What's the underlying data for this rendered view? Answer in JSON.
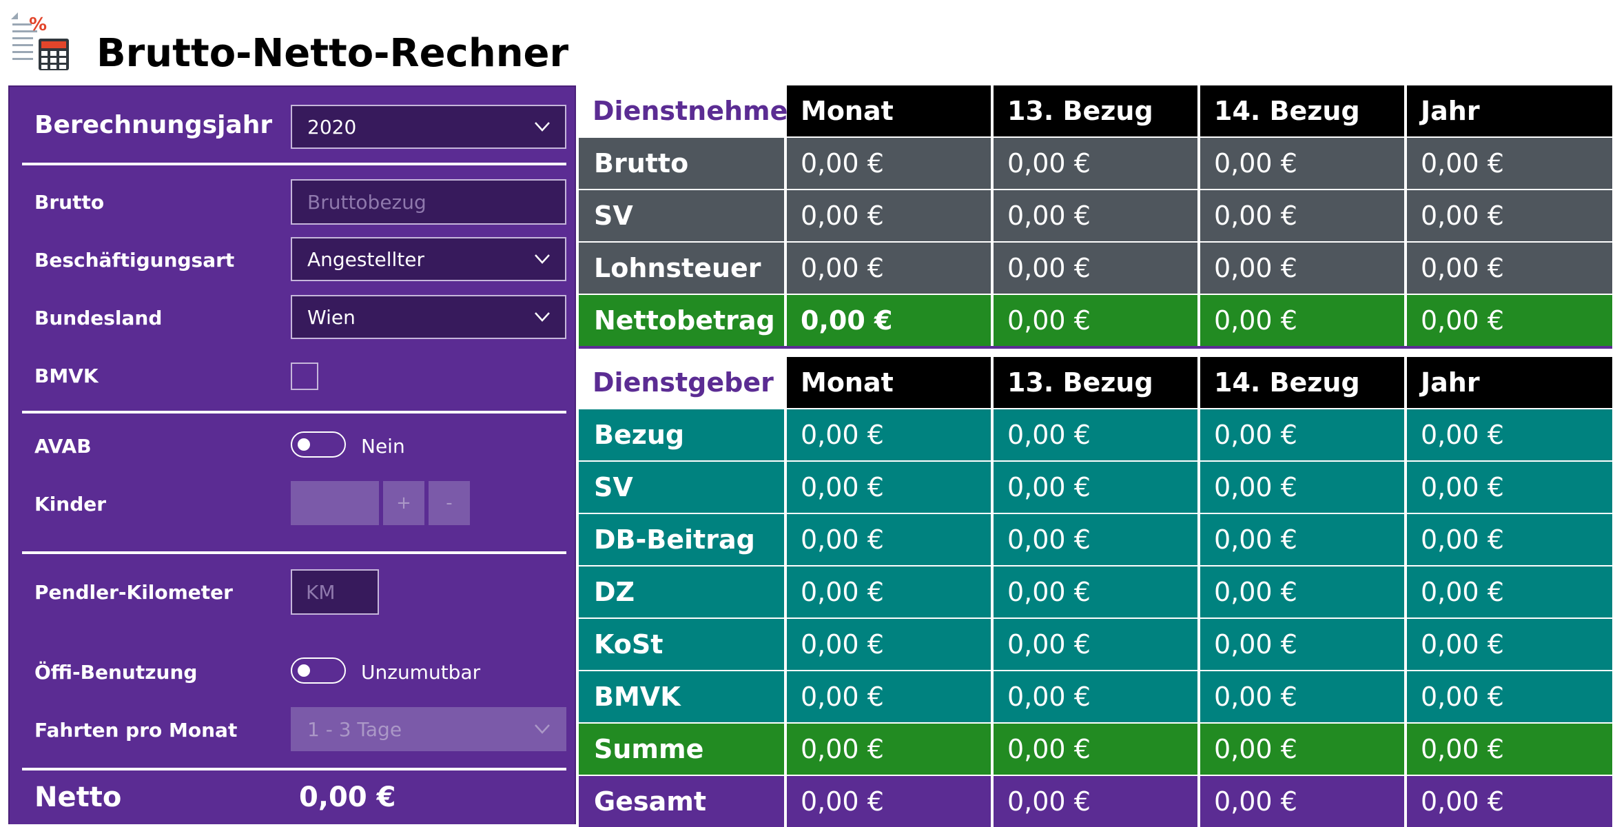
{
  "app": {
    "title": "Brutto-Netto-Rechner",
    "icon": "calculator-percent-icon"
  },
  "form": {
    "year": {
      "label": "Berechnungsjahr",
      "value": "2020"
    },
    "brutto": {
      "label": "Brutto",
      "placeholder": "Bruttobezug"
    },
    "employment": {
      "label": "Beschäftigungsart",
      "value": "Angestellter"
    },
    "state": {
      "label": "Bundesland",
      "value": "Wien"
    },
    "bmvk": {
      "label": "BMVK",
      "checked": false
    },
    "avab": {
      "label": "AVAB",
      "toggle_text": "Nein",
      "on": false
    },
    "kinder": {
      "label": "Kinder",
      "plus": "+",
      "minus": "-"
    },
    "pendler": {
      "label": "Pendler-Kilometer",
      "placeholder": "KM"
    },
    "oeffi": {
      "label": "Öffi-Benutzung",
      "toggle_text": "Unzumutbar",
      "on": false
    },
    "fahrten": {
      "label": "Fahrten pro Monat",
      "value": "1 - 3 Tage"
    },
    "netto": {
      "label": "Netto",
      "value": "0,00 €"
    }
  },
  "employee": {
    "title": "Dienstnehmer",
    "columns": [
      "Monat",
      "13. Bezug",
      "14. Bezug",
      "Jahr"
    ],
    "rows": [
      {
        "label": "Brutto",
        "values": [
          "0,00 €",
          "0,00 €",
          "0,00 €",
          "0,00 €"
        ]
      },
      {
        "label": "SV",
        "values": [
          "0,00 €",
          "0,00 €",
          "0,00 €",
          "0,00 €"
        ]
      },
      {
        "label": "Lohnsteuer",
        "values": [
          "0,00 €",
          "0,00 €",
          "0,00 €",
          "0,00 €"
        ]
      },
      {
        "label": "Nettobetrag",
        "values": [
          "0,00 €",
          "0,00 €",
          "0,00 €",
          "0,00 €"
        ]
      }
    ]
  },
  "employer": {
    "title": "Dienstgeber",
    "columns": [
      "Monat",
      "13. Bezug",
      "14. Bezug",
      "Jahr"
    ],
    "rows": [
      {
        "label": "Bezug",
        "values": [
          "0,00 €",
          "0,00 €",
          "0,00 €",
          "0,00 €"
        ]
      },
      {
        "label": "SV",
        "values": [
          "0,00 €",
          "0,00 €",
          "0,00 €",
          "0,00 €"
        ]
      },
      {
        "label": "DB-Beitrag",
        "values": [
          "0,00 €",
          "0,00 €",
          "0,00 €",
          "0,00 €"
        ]
      },
      {
        "label": "DZ",
        "values": [
          "0,00 €",
          "0,00 €",
          "0,00 €",
          "0,00 €"
        ]
      },
      {
        "label": "KoSt",
        "values": [
          "0,00 €",
          "0,00 €",
          "0,00 €",
          "0,00 €"
        ]
      },
      {
        "label": "BMVK",
        "values": [
          "0,00 €",
          "0,00 €",
          "0,00 €",
          "0,00 €"
        ]
      },
      {
        "label": "Summe",
        "values": [
          "0,00 €",
          "0,00 €",
          "0,00 €",
          "0,00 €"
        ]
      },
      {
        "label": "Gesamt",
        "values": [
          "0,00 €",
          "0,00 €",
          "0,00 €",
          "0,00 €"
        ]
      }
    ]
  },
  "colors": {
    "purple": "#5b2c93",
    "grey": "#4f565d",
    "green": "#228b22",
    "teal": "#00827f",
    "header": "#000000"
  }
}
